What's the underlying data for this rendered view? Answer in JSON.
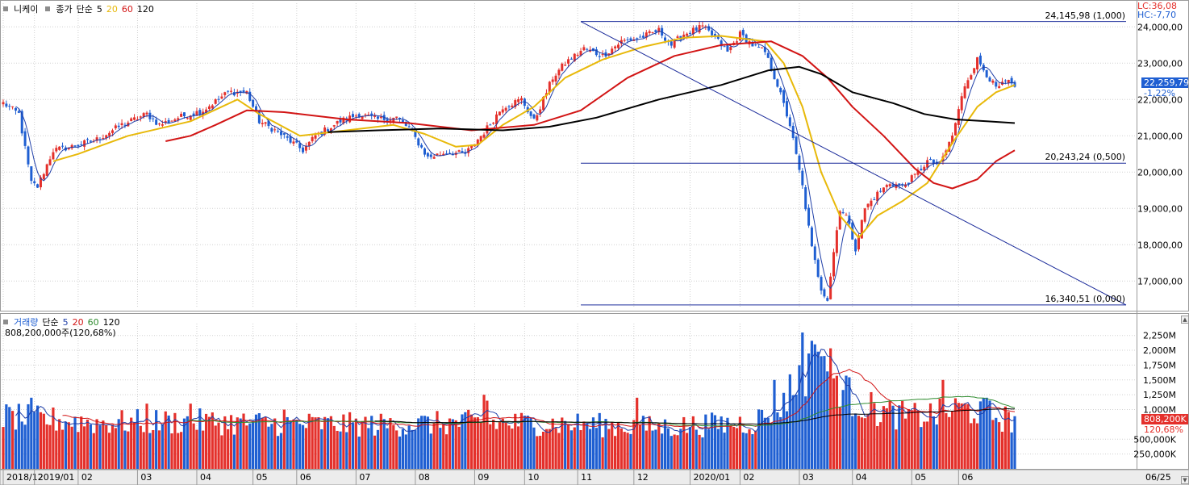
{
  "price_legend": {
    "symbol": "니케이",
    "items": [
      {
        "label": "종가",
        "color": "#000000"
      },
      {
        "label": "단순",
        "color": "#000000"
      },
      {
        "label": "5",
        "color": "#000000"
      },
      {
        "label": "20",
        "color": "#e8b90a"
      },
      {
        "label": "60",
        "color": "#d21414"
      },
      {
        "label": "120",
        "color": "#000000"
      }
    ]
  },
  "volume_legend": {
    "items": [
      {
        "label": "거래량",
        "color": "#1f5fd2"
      },
      {
        "label": "단순",
        "color": "#000000"
      },
      {
        "label": "5",
        "color": "#1f3fa8"
      },
      {
        "label": "20",
        "color": "#d21414"
      },
      {
        "label": "60",
        "color": "#2e8b2e"
      },
      {
        "label": "120",
        "color": "#000000"
      }
    ],
    "info": "808,200,000주(120,68%)"
  },
  "lc_hc": {
    "lc": "LC:36,08",
    "hc": "HC:-7,70",
    "lc_color": "#e4302b",
    "hc_color": "#1f5fd2"
  },
  "price_tag": {
    "value": "22,259,79",
    "pct": "-1,22%"
  },
  "volume_tag": {
    "value": "808,200K",
    "pct": "120,68%"
  },
  "fib_labels": [
    {
      "text": "24,145,98 (1,000)",
      "value": 24145.98
    },
    {
      "text": "20,243,24 (0,500)",
      "value": 20243.24
    },
    {
      "text": "16,340,51 (0,000)",
      "value": 16340.51
    }
  ],
  "corner_date": "06/25",
  "chart_data": [
    {
      "type": "candlestick",
      "ylim": [
        16250,
        24650
      ],
      "grid": true,
      "y_ticks": [
        {
          "label": "17,000,00",
          "value": 17000
        },
        {
          "label": "18,000,00",
          "value": 18000
        },
        {
          "label": "19,000,00",
          "value": 19000
        },
        {
          "label": "20,000,00",
          "value": 20000
        },
        {
          "label": "21,000,00",
          "value": 21000
        },
        {
          "label": "22,000,00",
          "value": 22000
        },
        {
          "label": "23,000,00",
          "value": 23000
        },
        {
          "label": "24,000,00",
          "value": 24000
        }
      ],
      "x_ticks": [
        {
          "label": "2018/12",
          "index": 0
        },
        {
          "label": "2019/01",
          "index": 10
        },
        {
          "label": "02",
          "index": 24
        },
        {
          "label": "03",
          "index": 43
        },
        {
          "label": "04",
          "index": 62
        },
        {
          "label": "05",
          "index": 80
        },
        {
          "label": "06",
          "index": 94
        },
        {
          "label": "07",
          "index": 113
        },
        {
          "label": "08",
          "index": 132
        },
        {
          "label": "09",
          "index": 151
        },
        {
          "label": "10",
          "index": 167
        },
        {
          "label": "11",
          "index": 184
        },
        {
          "label": "12",
          "index": 202
        },
        {
          "label": "2020/01",
          "index": 220
        },
        {
          "label": "02",
          "index": 236
        },
        {
          "label": "03",
          "index": 255
        },
        {
          "label": "04",
          "index": 272
        },
        {
          "label": "05",
          "index": 291
        },
        {
          "label": "06",
          "index": 306
        }
      ],
      "keypoints": [
        [
          0,
          21900
        ],
        [
          5,
          21600
        ],
        [
          9,
          19700
        ],
        [
          11,
          19600
        ],
        [
          16,
          20600
        ],
        [
          22,
          20700
        ],
        [
          30,
          20900
        ],
        [
          38,
          21300
        ],
        [
          46,
          21600
        ],
        [
          50,
          21300
        ],
        [
          56,
          21500
        ],
        [
          64,
          21700
        ],
        [
          72,
          22200
        ],
        [
          78,
          22200
        ],
        [
          82,
          21400
        ],
        [
          88,
          21100
        ],
        [
          96,
          20600
        ],
        [
          100,
          21000
        ],
        [
          108,
          21400
        ],
        [
          114,
          21600
        ],
        [
          120,
          21450
        ],
        [
          126,
          21500
        ],
        [
          130,
          21200
        ],
        [
          136,
          20400
        ],
        [
          142,
          20550
        ],
        [
          148,
          20500
        ],
        [
          154,
          21100
        ],
        [
          160,
          21800
        ],
        [
          166,
          22000
        ],
        [
          170,
          21400
        ],
        [
          176,
          22600
        ],
        [
          180,
          23000
        ],
        [
          186,
          23400
        ],
        [
          192,
          23200
        ],
        [
          198,
          23600
        ],
        [
          204,
          23700
        ],
        [
          210,
          23900
        ],
        [
          214,
          23500
        ],
        [
          218,
          23800
        ],
        [
          224,
          24000
        ],
        [
          228,
          23700
        ],
        [
          232,
          23300
        ],
        [
          236,
          23800
        ],
        [
          240,
          23500
        ],
        [
          244,
          23300
        ],
        [
          248,
          22400
        ],
        [
          252,
          21300
        ],
        [
          256,
          19600
        ],
        [
          259,
          17900
        ],
        [
          262,
          16800
        ],
        [
          264,
          16500
        ],
        [
          266,
          17800
        ],
        [
          268,
          19000
        ],
        [
          270,
          18800
        ],
        [
          273,
          17900
        ],
        [
          276,
          19000
        ],
        [
          280,
          19400
        ],
        [
          284,
          19700
        ],
        [
          288,
          19600
        ],
        [
          292,
          19900
        ],
        [
          296,
          20300
        ],
        [
          300,
          20200
        ],
        [
          304,
          21000
        ],
        [
          308,
          22400
        ],
        [
          312,
          23100
        ],
        [
          315,
          22700
        ],
        [
          318,
          22300
        ],
        [
          322,
          22500
        ],
        [
          324,
          22260
        ]
      ],
      "ma20_points": [
        [
          16,
          20300
        ],
        [
          24,
          20500
        ],
        [
          40,
          21000
        ],
        [
          60,
          21400
        ],
        [
          75,
          22000
        ],
        [
          82,
          21600
        ],
        [
          95,
          21000
        ],
        [
          110,
          21150
        ],
        [
          125,
          21300
        ],
        [
          135,
          21050
        ],
        [
          145,
          20700
        ],
        [
          152,
          20750
        ],
        [
          160,
          21300
        ],
        [
          170,
          21800
        ],
        [
          180,
          22600
        ],
        [
          192,
          23100
        ],
        [
          205,
          23450
        ],
        [
          218,
          23700
        ],
        [
          230,
          23750
        ],
        [
          244,
          23600
        ],
        [
          250,
          23000
        ],
        [
          256,
          21800
        ],
        [
          262,
          20000
        ],
        [
          268,
          18800
        ],
        [
          274,
          18200
        ],
        [
          280,
          18800
        ],
        [
          288,
          19200
        ],
        [
          296,
          19700
        ],
        [
          304,
          20800
        ],
        [
          312,
          21800
        ],
        [
          318,
          22200
        ],
        [
          324,
          22400
        ]
      ],
      "ma60_points": [
        [
          52,
          20850
        ],
        [
          60,
          21000
        ],
        [
          68,
          21300
        ],
        [
          78,
          21700
        ],
        [
          90,
          21650
        ],
        [
          110,
          21450
        ],
        [
          130,
          21350
        ],
        [
          150,
          21150
        ],
        [
          170,
          21300
        ],
        [
          185,
          21700
        ],
        [
          200,
          22600
        ],
        [
          215,
          23200
        ],
        [
          230,
          23500
        ],
        [
          246,
          23600
        ],
        [
          256,
          23200
        ],
        [
          264,
          22600
        ],
        [
          272,
          21800
        ],
        [
          282,
          21000
        ],
        [
          292,
          20100
        ],
        [
          298,
          19700
        ],
        [
          304,
          19550
        ],
        [
          312,
          19800
        ],
        [
          318,
          20300
        ],
        [
          324,
          20600
        ]
      ],
      "ma120_points": [
        [
          104,
          21100
        ],
        [
          120,
          21150
        ],
        [
          140,
          21200
        ],
        [
          160,
          21150
        ],
        [
          175,
          21250
        ],
        [
          190,
          21500
        ],
        [
          210,
          22000
        ],
        [
          230,
          22400
        ],
        [
          245,
          22800
        ],
        [
          255,
          22900
        ],
        [
          262,
          22700
        ],
        [
          272,
          22200
        ],
        [
          285,
          21900
        ],
        [
          295,
          21600
        ],
        [
          305,
          21450
        ],
        [
          315,
          21400
        ],
        [
          324,
          21350
        ]
      ]
    },
    {
      "type": "bar",
      "ylim": [
        0,
        2450
      ],
      "grid": true,
      "y_ticks": [
        {
          "label": "250,000K",
          "value": 250
        },
        {
          "label": "500,000K",
          "value": 500
        },
        {
          "label": "1,000M",
          "value": 1000
        },
        {
          "label": "1,250M",
          "value": 1250
        },
        {
          "label": "1,500M",
          "value": 1500
        },
        {
          "label": "1,750M",
          "value": 1750
        },
        {
          "label": "2,000M",
          "value": 2000
        },
        {
          "label": "2,250M",
          "value": 2250
        }
      ],
      "volume_keypoints": [
        [
          0,
          900
        ],
        [
          30,
          800
        ],
        [
          60,
          820
        ],
        [
          90,
          780
        ],
        [
          120,
          760
        ],
        [
          150,
          800
        ],
        [
          180,
          780
        ],
        [
          210,
          720
        ],
        [
          240,
          800
        ],
        [
          248,
          1050
        ],
        [
          254,
          1500
        ],
        [
          258,
          1750
        ],
        [
          262,
          2000
        ],
        [
          266,
          1600
        ],
        [
          272,
          1200
        ],
        [
          280,
          1000
        ],
        [
          290,
          900
        ],
        [
          300,
          950
        ],
        [
          306,
          1050
        ],
        [
          312,
          1000
        ],
        [
          324,
          820
        ]
      ],
      "spikes": [
        [
          9,
          1200
        ],
        [
          46,
          1100
        ],
        [
          60,
          1100
        ],
        [
          90,
          1000
        ],
        [
          154,
          1250
        ],
        [
          155,
          1150
        ],
        [
          203,
          1200
        ],
        [
          247,
          1500
        ],
        [
          256,
          2300
        ],
        [
          260,
          2100
        ],
        [
          262,
          1900
        ],
        [
          301,
          1500
        ],
        [
          315,
          1200
        ]
      ]
    }
  ]
}
